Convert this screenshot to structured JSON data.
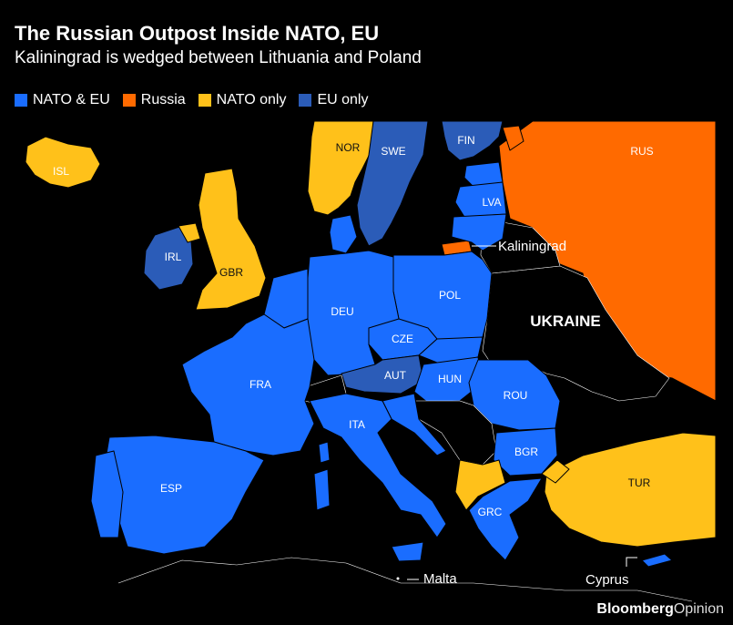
{
  "title": "The Russian Outpost Inside NATO, EU",
  "subtitle": "Kaliningrad is wedged between Lithuania and Poland",
  "legend": [
    {
      "label": "NATO & EU",
      "color": "#1a6dff"
    },
    {
      "label": "Russia",
      "color": "#ff6a00"
    },
    {
      "label": "NATO only",
      "color": "#ffc11a"
    },
    {
      "label": "EU only",
      "color": "#2b5cb8"
    }
  ],
  "countries": {
    "isl": "ISL",
    "nor": "NOR",
    "swe": "SWE",
    "fin": "FIN",
    "rus": "RUS",
    "irl": "IRL",
    "gbr": "GBR",
    "lva": "LVA",
    "deu": "DEU",
    "pol": "POL",
    "cze": "CZE",
    "fra": "FRA",
    "aut": "AUT",
    "hun": "HUN",
    "rou": "ROU",
    "ita": "ITA",
    "bgr": "BGR",
    "esp": "ESP",
    "grc": "GRC",
    "tur": "TUR",
    "ukraine": "UKRAINE"
  },
  "callouts": {
    "kaliningrad": "Kaliningrad",
    "malta": "Malta",
    "cyprus": "Cyprus"
  },
  "source": {
    "brand": "Bloomberg",
    "suffix": "Opinion"
  }
}
